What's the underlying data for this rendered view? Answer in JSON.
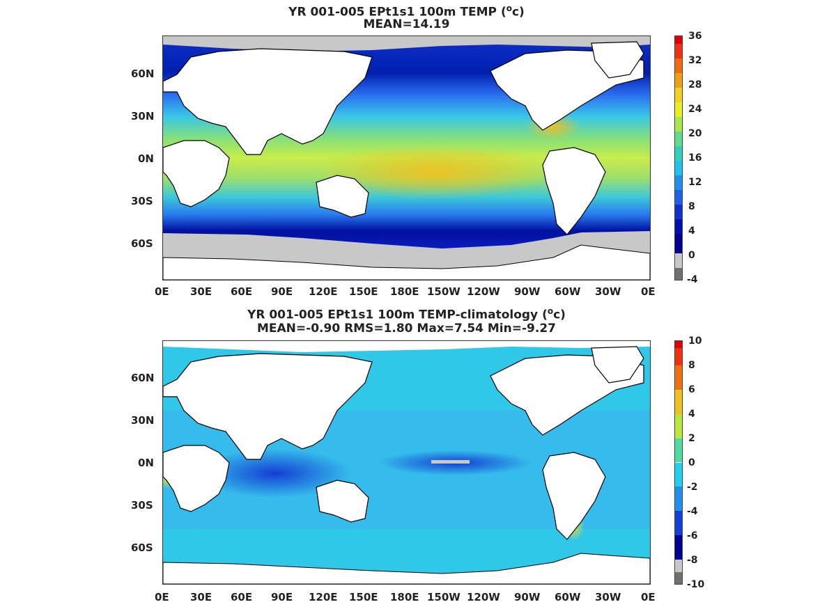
{
  "panels": [
    {
      "title_line1": "YR 001-005 EPt1s1 100m TEMP",
      "title_unit_prefix": "(",
      "title_unit_sup": "o",
      "title_unit_suffix": "c)",
      "title_line2": "MEAN=14.19",
      "colorbar_labels": [
        "36",
        "32",
        "28",
        "24",
        "20",
        "16",
        "12",
        "8",
        "4",
        "0",
        "-4"
      ]
    },
    {
      "title_line1": "YR 001-005 EPt1s1 100m TEMP-climatology",
      "title_unit_prefix": "(",
      "title_unit_sup": "o",
      "title_unit_suffix": "c)",
      "title_line2": "MEAN=-0.90   RMS=1.80   Max=7.54   Min=-9.27",
      "colorbar_labels": [
        "10",
        "8",
        "6",
        "4",
        "2",
        "0",
        "-2",
        "-4",
        "-6",
        "-8",
        "-10"
      ]
    }
  ],
  "axes": {
    "lon_labels": [
      "0E",
      "30E",
      "60E",
      "90E",
      "120E",
      "150E",
      "180E",
      "150W",
      "120W",
      "90W",
      "60W",
      "30W",
      "0E"
    ],
    "lat_labels": [
      "60N",
      "30N",
      "0N",
      "30S",
      "60S"
    ]
  },
  "colors": {
    "land": "#ffffff",
    "ice": "#c8c8c8",
    "coast": "#000000"
  }
}
